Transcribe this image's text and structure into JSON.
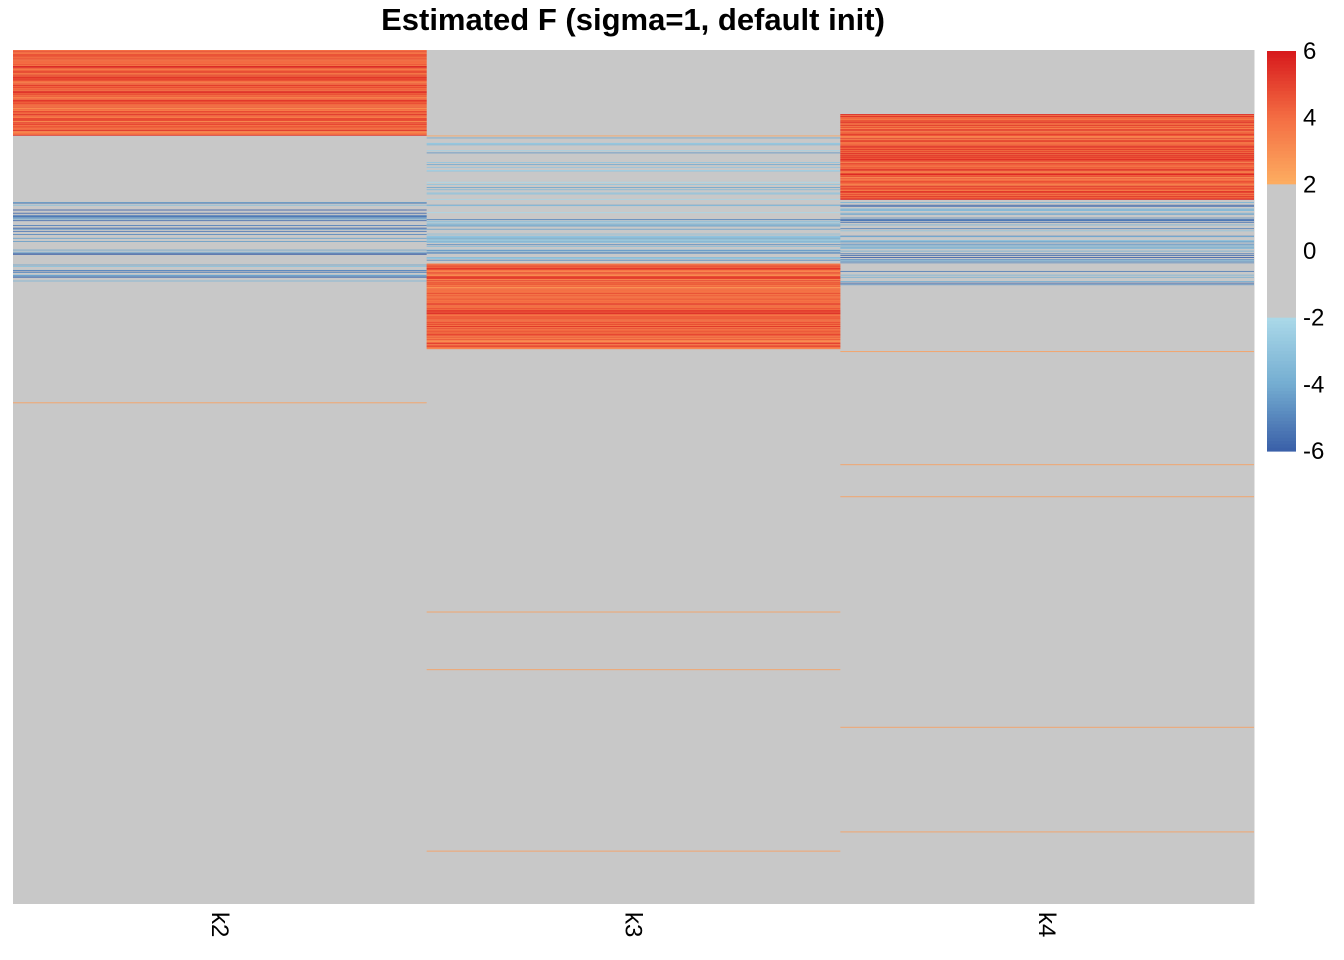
{
  "chart_data": {
    "type": "heatmap",
    "title": "Estimated F (sigma=1, default init)",
    "columns": [
      "k2",
      "k3",
      "k4"
    ],
    "n_rows": 400,
    "blocks": [
      {
        "column": "k2",
        "row_start": 0,
        "row_end": 40,
        "value": 5.8,
        "pattern": "strong-positive"
      },
      {
        "column": "k2",
        "row_start": 70,
        "row_end": 110,
        "value": -4.5,
        "pattern": "sparse-negative"
      },
      {
        "column": "k3",
        "row_start": 40,
        "row_end": 110,
        "value": -3.5,
        "pattern": "sparse-negative"
      },
      {
        "column": "k3",
        "row_start": 100,
        "row_end": 140,
        "value": 5.6,
        "pattern": "strong-positive"
      },
      {
        "column": "k4",
        "row_start": 30,
        "row_end": 70,
        "value": 5.8,
        "pattern": "strong-positive"
      },
      {
        "column": "k4",
        "row_start": 70,
        "row_end": 110,
        "value": -4.5,
        "pattern": "sparse-negative"
      }
    ],
    "isolated_rows": [
      {
        "column": "k2",
        "row": 165,
        "value": 2.5
      },
      {
        "column": "k3",
        "row": 40,
        "value": 2.3
      },
      {
        "column": "k3",
        "row": 263,
        "value": 2.5
      },
      {
        "column": "k3",
        "row": 290,
        "value": 2.5
      },
      {
        "column": "k3",
        "row": 375,
        "value": 2.5
      },
      {
        "column": "k4",
        "row": 141,
        "value": 2.5
      },
      {
        "column": "k4",
        "row": 194,
        "value": 2.5
      },
      {
        "column": "k4",
        "row": 209,
        "value": 2.5
      },
      {
        "column": "k4",
        "row": 317,
        "value": 2.5
      },
      {
        "column": "k4",
        "row": 366,
        "value": 2.5
      }
    ],
    "legend": {
      "ticks": [
        6,
        4,
        2,
        0,
        -2,
        -4,
        -6
      ],
      "range": [
        -6,
        6
      ],
      "placement": "right",
      "colors": {
        "high": "#d7191c",
        "mid_high": "#f46d43",
        "low_pos": "#fdae61",
        "zero": "#c8c8c8",
        "low_neg": "#abd9e9",
        "mid_low": "#74add1",
        "low": "#3a5fa8"
      }
    }
  }
}
